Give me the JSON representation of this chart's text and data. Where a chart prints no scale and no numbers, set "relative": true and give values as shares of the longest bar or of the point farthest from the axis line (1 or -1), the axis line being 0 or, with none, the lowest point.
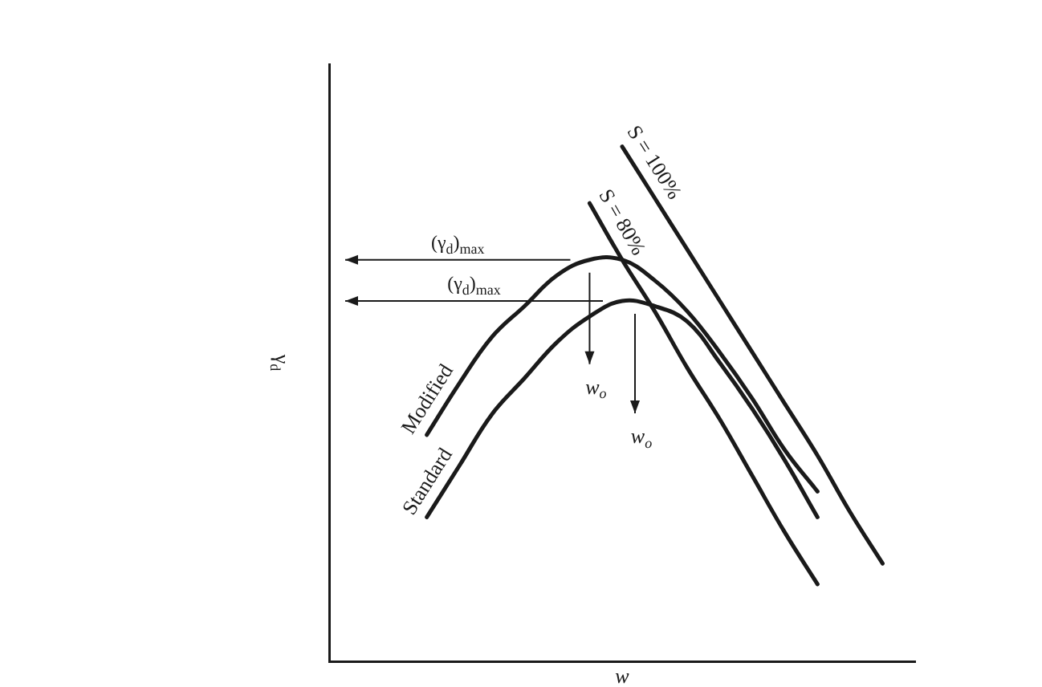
{
  "chart_data": {
    "type": "line",
    "relative": true,
    "xlabel": "w",
    "ylabel": "γ$_{d}$",
    "legend": false,
    "marker": "none",
    "categories": [
      null,
      null,
      null,
      null,
      null,
      null,
      null,
      null,
      null,
      null,
      null,
      null,
      null,
      null,
      null,
      null,
      null,
      null,
      null
    ],
    "series": [
      {
        "name": "Modified",
        "color": "#1a1a1a",
        "values": [
          null,
          null,
          null,
          0.44,
          0.54,
          0.63,
          0.69,
          0.75,
          0.78,
          0.78,
          0.74,
          0.68,
          0.6,
          0.51,
          0.41,
          0.33,
          null,
          null,
          null
        ]
      },
      {
        "name": "Standard",
        "color": "#1a1a1a",
        "values": [
          null,
          null,
          null,
          0.28,
          0.38,
          0.48,
          0.55,
          0.62,
          0.67,
          0.7,
          0.69,
          0.66,
          0.58,
          0.49,
          0.39,
          0.28,
          null,
          null,
          null
        ]
      },
      {
        "name": "S = 80%",
        "color": "#1a1a1a",
        "values": [
          null,
          null,
          null,
          null,
          null,
          null,
          null,
          null,
          0.89,
          0.78,
          0.68,
          0.57,
          0.47,
          0.36,
          0.25,
          0.15,
          null,
          null,
          null
        ]
      },
      {
        "name": "S = 100%",
        "color": "#1a1a1a",
        "values": [
          null,
          null,
          null,
          null,
          null,
          null,
          null,
          null,
          null,
          1.0,
          0.9,
          0.8,
          0.7,
          0.6,
          0.5,
          0.4,
          0.29,
          0.19,
          null
        ]
      }
    ],
    "annotations": [
      "(γ$_{d}$)$_{max}$",
      "(γ$_{d}$)$_{max}$",
      "w$_{o}$",
      "w$_{o}$"
    ]
  }
}
